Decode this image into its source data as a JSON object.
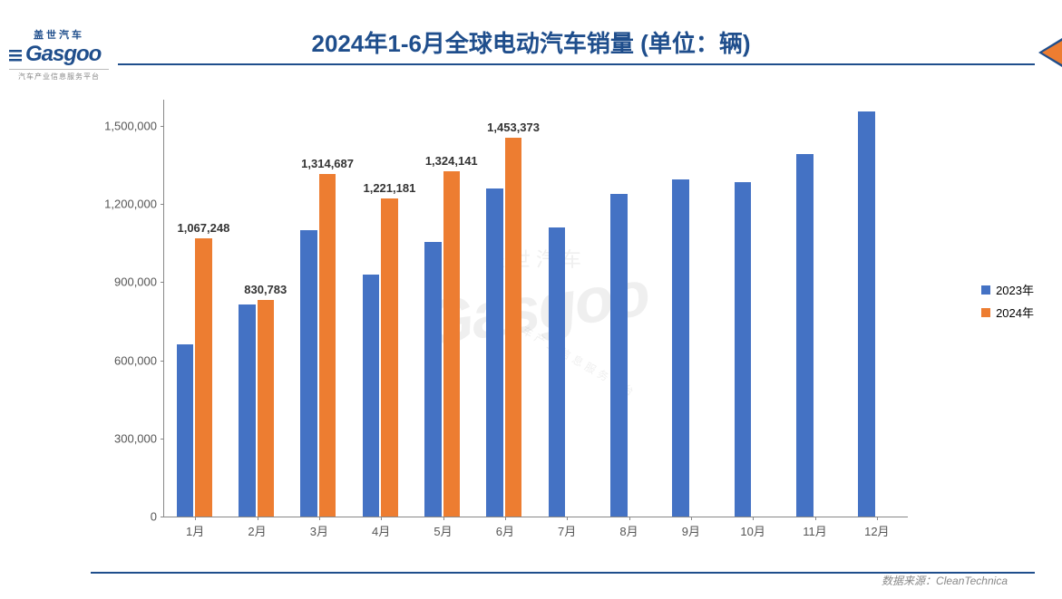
{
  "logo": {
    "top_text": "盖世汽车",
    "main_text": "Gasgoo",
    "sub_text": "汽车产业信息服务平台"
  },
  "title": "2024年1-6月全球电动汽车销量 (单位：辆)",
  "corner_arrow_color_outer": "#1f4e8c",
  "corner_arrow_color_inner": "#ed7d31",
  "chart": {
    "type": "bar",
    "categories": [
      "1月",
      "2月",
      "3月",
      "4月",
      "5月",
      "6月",
      "7月",
      "8月",
      "9月",
      "10月",
      "11月",
      "12月"
    ],
    "series": [
      {
        "name": "2023年",
        "color": "#4472c4",
        "values": [
          660000,
          815000,
          1100000,
          930000,
          1055000,
          1260000,
          1110000,
          1240000,
          1295000,
          1285000,
          1390000,
          1555000
        ],
        "show_labels": false
      },
      {
        "name": "2024年",
        "color": "#ed7d31",
        "values": [
          1067248,
          830783,
          1314687,
          1221181,
          1324141,
          1453373,
          null,
          null,
          null,
          null,
          null,
          null
        ],
        "show_labels": true,
        "labels": [
          "1,067,248",
          "830,783",
          "1,314,687",
          "1,221,181",
          "1,324,141",
          "1,453,373",
          "",
          "",
          "",
          "",
          "",
          ""
        ]
      }
    ],
    "ymin": 0,
    "ymax": 1600000,
    "yticks": [
      0,
      300000,
      600000,
      900000,
      1200000,
      1500000
    ],
    "ytick_labels": [
      "0",
      "300,000",
      "600,000",
      "900,000",
      "1,200,000",
      "1,500,000"
    ],
    "axis_color": "#888888",
    "label_fontsize": 13,
    "data_label_fontsize": 13,
    "bar_group_width_ratio": 0.6,
    "background_color": "#ffffff"
  },
  "legend": {
    "items": [
      {
        "label": "2023年",
        "color": "#4472c4"
      },
      {
        "label": "2024年",
        "color": "#ed7d31"
      }
    ]
  },
  "source_label": "数据来源：CleanTechnica",
  "watermark": {
    "main": "Gasgoo",
    "top": "盖世汽车",
    "sub": "汽车产业信息服务平台"
  }
}
